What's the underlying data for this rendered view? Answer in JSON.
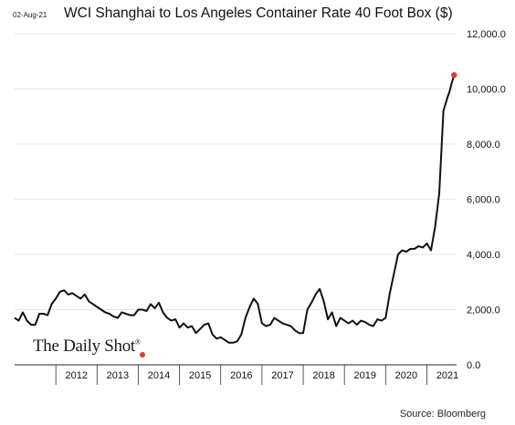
{
  "chart_data": {
    "type": "line",
    "date_label": "02-Aug-21",
    "title": "WCI Shanghai to Los Angeles Container Rate 40 Foot Box ($)",
    "source": "Source: Bloomberg",
    "brand": "The Daily Shot",
    "brand_mark": "®",
    "xlabel": "",
    "ylabel": "",
    "xlim": [
      2011.0,
      2021.72
    ],
    "ylim": [
      0,
      12000
    ],
    "y_ticks": [
      0,
      2000,
      4000,
      6000,
      8000,
      10000,
      12000
    ],
    "y_tick_labels": [
      "0.0",
      "2,000.0",
      "4,000.0",
      "6,000.0",
      "8,000.0",
      "10,000.0",
      "12,000.0"
    ],
    "x_categories": [
      "2012",
      "2013",
      "2014",
      "2015",
      "2016",
      "2017",
      "2018",
      "2019",
      "2020",
      "2021"
    ],
    "grid": "horizontal",
    "last_point_color": "#e03a2e",
    "line_color": "#111111",
    "series": [
      {
        "x": [
          2011.0,
          2011.1,
          2011.2,
          2011.25,
          2011.3,
          2011.4,
          2011.5,
          2011.6,
          2011.7,
          2011.8,
          2011.9,
          2012.0,
          2012.1,
          2012.2,
          2012.3,
          2012.4,
          2012.5,
          2012.6,
          2012.7,
          2012.8,
          2012.9,
          2013.0,
          2013.1,
          2013.2,
          2013.3,
          2013.4,
          2013.5,
          2013.6,
          2013.7,
          2013.8,
          2013.9,
          2014.0,
          2014.1,
          2014.2,
          2014.3,
          2014.4,
          2014.5,
          2014.6,
          2014.7,
          2014.8,
          2014.9,
          2015.0,
          2015.1,
          2015.2,
          2015.3,
          2015.4,
          2015.5,
          2015.6,
          2015.7,
          2015.8,
          2015.9,
          2016.0,
          2016.1,
          2016.2,
          2016.3,
          2016.4,
          2016.5,
          2016.6,
          2016.7,
          2016.8,
          2016.9,
          2017.0,
          2017.1,
          2017.2,
          2017.3,
          2017.4,
          2017.5,
          2017.6,
          2017.7,
          2017.8,
          2017.9,
          2018.0,
          2018.1,
          2018.2,
          2018.3,
          2018.4,
          2018.5,
          2018.6,
          2018.7,
          2018.8,
          2018.9,
          2019.0,
          2019.1,
          2019.2,
          2019.3,
          2019.4,
          2019.5,
          2019.6,
          2019.7,
          2019.8,
          2019.9,
          2020.0,
          2020.1,
          2020.2,
          2020.3,
          2020.4,
          2020.5,
          2020.6,
          2020.7,
          2020.8,
          2020.9,
          2021.0,
          2021.1,
          2021.2,
          2021.3,
          2021.4,
          2021.5,
          2021.55,
          2021.6,
          2021.66
        ],
        "y": [
          1700,
          1600,
          1900,
          1750,
          1600,
          1450,
          1450,
          1850,
          1850,
          1800,
          2200,
          2400,
          2650,
          2700,
          2550,
          2600,
          2500,
          2400,
          2550,
          2300,
          2200,
          2100,
          2000,
          1900,
          1850,
          1750,
          1700,
          1900,
          1850,
          1800,
          1800,
          2000,
          2000,
          1950,
          2200,
          2050,
          2250,
          1900,
          1700,
          1600,
          1650,
          1350,
          1500,
          1350,
          1400,
          1150,
          1300,
          1450,
          1500,
          1100,
          950,
          1000,
          900,
          800,
          800,
          850,
          1100,
          1700,
          2100,
          2400,
          2200,
          1500,
          1400,
          1450,
          1700,
          1600,
          1500,
          1450,
          1400,
          1250,
          1150,
          1150,
          2000,
          2250,
          2550,
          2750,
          2300,
          1650,
          1900,
          1400,
          1700,
          1600,
          1500,
          1600,
          1450,
          1600,
          1550,
          1450,
          1400,
          1650,
          1600,
          1700,
          2600,
          3300,
          4000,
          4150,
          4100,
          4200,
          4200,
          4300,
          4250,
          4400,
          4150,
          5000,
          6200,
          9200,
          9700,
          9900,
          10200,
          10500
        ]
      }
    ]
  }
}
